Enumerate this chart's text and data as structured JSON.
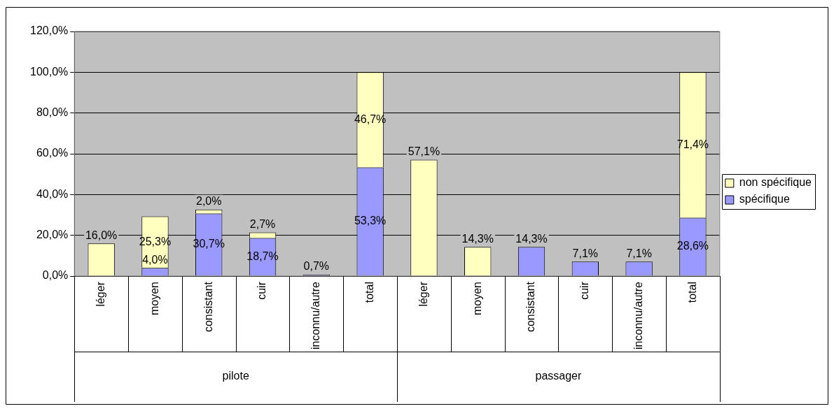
{
  "chart_data": {
    "type": "bar",
    "stacked": true,
    "categories": [
      "léger",
      "moyen",
      "consistant",
      "cuir",
      "inconnu/autre",
      "total",
      "léger",
      "moyen",
      "consistant",
      "cuir",
      "inconnu/autre",
      "total"
    ],
    "annotations": [
      "pilote",
      "passager"
    ],
    "series": [
      {
        "name": "spécifique",
        "color": "#9999ff",
        "values": [
          null,
          4.0,
          30.7,
          18.7,
          0.7,
          53.3,
          null,
          null,
          14.3,
          7.1,
          7.1,
          28.6
        ],
        "value_labels": [
          null,
          "4,0%",
          "30,7%",
          "18,7%",
          "0,7%",
          "53,3%",
          null,
          null,
          "14,3%",
          "7,1%",
          "7,1%",
          "28,6%"
        ]
      },
      {
        "name": "non spécifique",
        "color": "#ffffc0",
        "values": [
          16.0,
          25.3,
          2.0,
          2.7,
          null,
          46.7,
          57.1,
          14.3,
          null,
          null,
          null,
          71.4
        ],
        "value_labels": [
          "16,0%",
          "25,3%",
          "2,0%",
          "2,7%",
          null,
          "46,7%",
          "57,1%",
          "14,3%",
          null,
          null,
          null,
          "71,4%"
        ]
      }
    ],
    "ylim": [
      0,
      120
    ],
    "yticks": [
      {
        "value": 0,
        "label": "0,0%"
      },
      {
        "value": 20,
        "label": "20,0%"
      },
      {
        "value": 40,
        "label": "40,0%"
      },
      {
        "value": 60,
        "label": "60,0%"
      },
      {
        "value": 80,
        "label": "80,0%"
      },
      {
        "value": 100,
        "label": "100,0%"
      },
      {
        "value": 120,
        "label": "120,0%"
      }
    ],
    "grid": "y",
    "legend": "right"
  }
}
